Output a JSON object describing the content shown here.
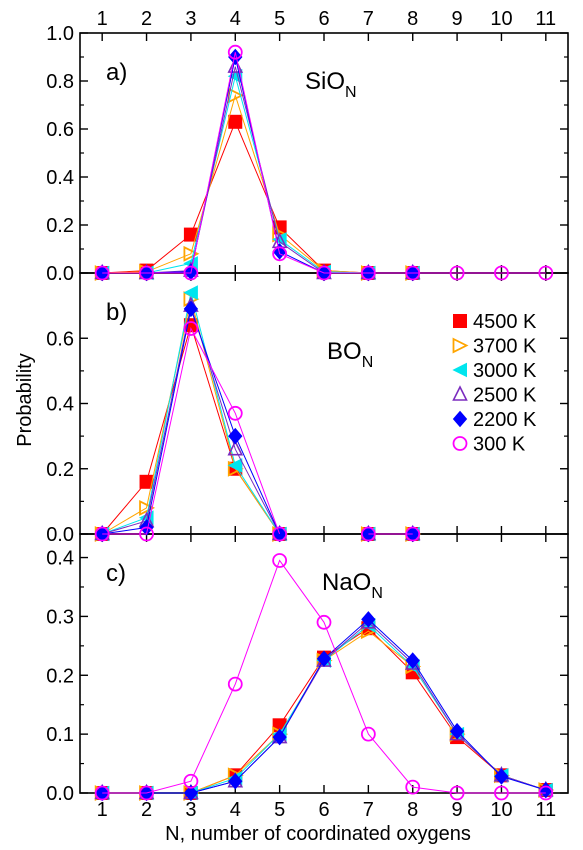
{
  "chart_data": {
    "type": "line",
    "xlabel": "N, number of coordinated oxygens",
    "ylabel": "Probability",
    "x": [
      1,
      2,
      3,
      4,
      5,
      6,
      7,
      8,
      9,
      10,
      11
    ],
    "x_ticks": [
      "1",
      "2",
      "3",
      "4",
      "5",
      "6",
      "7",
      "8",
      "9",
      "10",
      "11"
    ],
    "legend": {
      "placement": "right of panel b",
      "entries": [
        {
          "label": "4500 K",
          "color": "#ff0000",
          "marker": "square-filled"
        },
        {
          "label": "3700 K",
          "color": "#ffa500",
          "marker": "triangle-right-open"
        },
        {
          "label": "3000 K",
          "color": "#00e5ee",
          "marker": "triangle-left-filled"
        },
        {
          "label": "2500 K",
          "color": "#7b2cbf",
          "marker": "triangle-up-open"
        },
        {
          "label": "2200 K",
          "color": "#0000ff",
          "marker": "diamond-filled"
        },
        {
          "label": "300 K",
          "color": "#ff00ff",
          "marker": "circle-open"
        }
      ]
    },
    "panels": [
      {
        "letter": "a)",
        "species": "SiO",
        "subscript": "N",
        "ylim": [
          0,
          1.0
        ],
        "y_ticks": [
          "0.0",
          "0.2",
          "0.4",
          "0.6",
          "0.8",
          "1.0"
        ],
        "series": [
          {
            "name": "4500 K",
            "values": [
              0.0,
              0.01,
              0.16,
              0.63,
              0.19,
              0.01,
              0.0,
              0.0,
              null,
              null,
              null
            ]
          },
          {
            "name": "3700 K",
            "values": [
              0.0,
              0.005,
              0.08,
              0.74,
              0.16,
              0.01,
              0.0,
              0.0,
              null,
              null,
              null
            ]
          },
          {
            "name": "3000 K",
            "values": [
              0.0,
              0.0,
              0.04,
              0.82,
              0.14,
              0.005,
              0.0,
              0.0,
              null,
              null,
              null
            ]
          },
          {
            "name": "2500 K",
            "values": [
              0.0,
              0.0,
              0.01,
              0.86,
              0.13,
              0.0,
              0.0,
              0.0,
              null,
              null,
              null
            ]
          },
          {
            "name": "2200 K",
            "values": [
              0.0,
              0.0,
              0.005,
              0.9,
              0.09,
              0.0,
              0.0,
              0.0,
              null,
              null,
              null
            ]
          },
          {
            "name": "300 K",
            "values": [
              0.0,
              0.0,
              0.0,
              0.92,
              0.08,
              0.0,
              0.0,
              0.0,
              0.0,
              0.0,
              0.0
            ]
          }
        ]
      },
      {
        "letter": "b)",
        "species": "BO",
        "subscript": "N",
        "ylim": [
          0,
          0.8
        ],
        "y_ticks": [
          "0.0",
          "0.2",
          "0.4",
          "0.6"
        ],
        "series": [
          {
            "name": "4500 K",
            "values": [
              0.0,
              0.16,
              0.64,
              0.2,
              0.0,
              null,
              0.0,
              0.0,
              null,
              null,
              null
            ]
          },
          {
            "name": "3700 K",
            "values": [
              0.0,
              0.08,
              0.72,
              0.2,
              0.0,
              null,
              0.0,
              0.0,
              null,
              null,
              null
            ]
          },
          {
            "name": "3000 K",
            "values": [
              0.0,
              0.05,
              0.74,
              0.21,
              0.0,
              null,
              0.0,
              0.0,
              null,
              null,
              null
            ]
          },
          {
            "name": "2500 K",
            "values": [
              0.0,
              0.04,
              0.7,
              0.26,
              0.0,
              null,
              0.0,
              0.0,
              null,
              null,
              null
            ]
          },
          {
            "name": "2200 K",
            "values": [
              0.0,
              0.02,
              0.69,
              0.3,
              0.0,
              null,
              0.0,
              0.0,
              null,
              null,
              null
            ]
          },
          {
            "name": "300 K",
            "values": [
              0.0,
              0.0,
              0.63,
              0.37,
              0.0,
              null,
              0.0,
              0.0,
              null,
              null,
              null
            ]
          }
        ]
      },
      {
        "letter": "c)",
        "species": "NaO",
        "subscript": "N",
        "ylim": [
          0,
          0.44
        ],
        "y_ticks": [
          "0.0",
          "0.1",
          "0.2",
          "0.3",
          "0.4"
        ],
        "series": [
          {
            "name": "4500 K",
            "values": [
              0.0,
              0.0,
              0.0,
              0.03,
              0.115,
              0.23,
              0.28,
              0.205,
              0.095,
              0.03,
              0.005
            ]
          },
          {
            "name": "3700 K",
            "values": [
              0.0,
              0.0,
              0.0,
              0.03,
              0.1,
              0.225,
              0.275,
              0.215,
              0.1,
              0.03,
              0.005
            ]
          },
          {
            "name": "3000 K",
            "values": [
              0.0,
              0.0,
              0.0,
              0.025,
              0.1,
              0.225,
              0.285,
              0.215,
              0.1,
              0.03,
              0.005
            ]
          },
          {
            "name": "2500 K",
            "values": [
              0.0,
              0.0,
              0.0,
              0.02,
              0.095,
              0.225,
              0.29,
              0.22,
              0.1,
              0.03,
              0.005
            ]
          },
          {
            "name": "2200 K",
            "values": [
              0.0,
              0.0,
              0.0,
              0.02,
              0.095,
              0.228,
              0.295,
              0.225,
              0.105,
              0.028,
              0.005
            ]
          },
          {
            "name": "300 K",
            "values": [
              0.0,
              0.0,
              0.02,
              0.185,
              0.395,
              0.29,
              0.1,
              0.01,
              0.0,
              0.0,
              0.0
            ]
          }
        ]
      }
    ]
  }
}
